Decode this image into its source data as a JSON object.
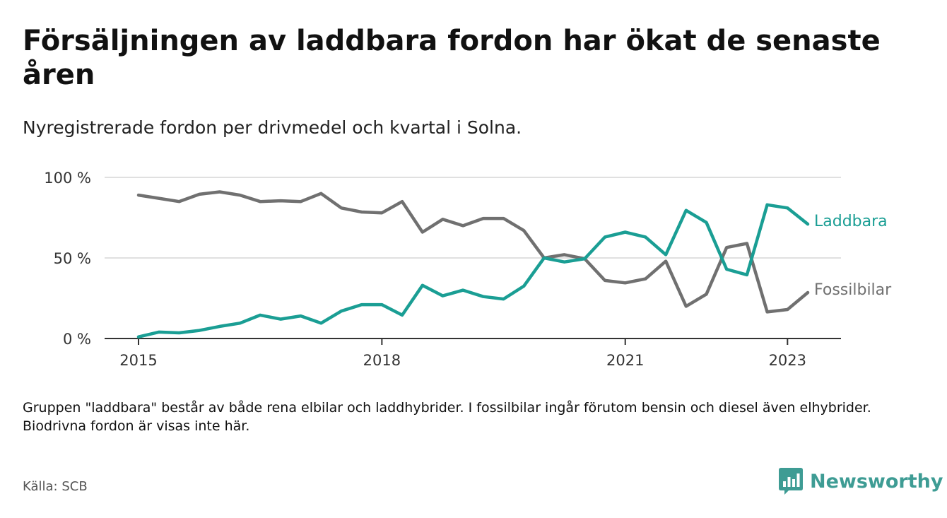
{
  "title": "Försäljningen av laddbara fordon har ökat de senaste åren",
  "subtitle": "Nyregistrerade fordon per drivmedel och kvartal i Solna.",
  "note": "Gruppen \"laddbara\" består av både rena elbilar och laddhybrider. I fossilbilar ingår förutom bensin och diesel även elhybrider. Biodrivna fordon är visas inte här.",
  "source": "Källa: SCB",
  "brand": {
    "name": "Newsworthy",
    "color": "#3e9c94"
  },
  "chart_data": {
    "type": "line",
    "title": "",
    "xlabel": "",
    "ylabel": "",
    "ylim": [
      0,
      100
    ],
    "yticks": [
      {
        "value": 0,
        "label": "0 %"
      },
      {
        "value": 50,
        "label": "50 %"
      },
      {
        "value": 100,
        "label": "100 %"
      }
    ],
    "xticks": [
      {
        "index": 0,
        "label": "2015"
      },
      {
        "index": 12,
        "label": "2018"
      },
      {
        "index": 24,
        "label": "2021"
      },
      {
        "index": 32,
        "label": "2023"
      }
    ],
    "grid": true,
    "x": [
      "2015 K1",
      "2015 K2",
      "2015 K3",
      "2015 K4",
      "2016 K1",
      "2016 K2",
      "2016 K3",
      "2016 K4",
      "2017 K1",
      "2017 K2",
      "2017 K3",
      "2017 K4",
      "2018 K1",
      "2018 K2",
      "2018 K3",
      "2018 K4",
      "2019 K1",
      "2019 K2",
      "2019 K3",
      "2019 K4",
      "2020 K1",
      "2020 K2",
      "2020 K3",
      "2020 K4",
      "2021 K1",
      "2021 K2",
      "2021 K3",
      "2021 K4",
      "2022 K1",
      "2022 K2",
      "2022 K3",
      "2022 K4",
      "2023 K1",
      "2023 K2"
    ],
    "series": [
      {
        "name": "Laddbara",
        "color": "#1a9e94",
        "values": [
          1,
          4,
          3.5,
          5,
          7.5,
          9.5,
          14.5,
          12,
          14,
          9.5,
          17,
          21,
          21,
          14.5,
          33,
          26.5,
          30,
          26,
          24.5,
          32.5,
          50,
          47.5,
          49.5,
          63,
          66,
          63,
          52,
          79.5,
          72,
          43,
          39.5,
          83,
          81,
          71
        ]
      },
      {
        "name": "Fossilbilar",
        "color": "#707070",
        "values": [
          89,
          87,
          85,
          89.5,
          91,
          89,
          85,
          85.5,
          85,
          90,
          81,
          78.5,
          78,
          85,
          66,
          74,
          70,
          74.5,
          74.5,
          67,
          50,
          52,
          49.5,
          36,
          34.5,
          37,
          48,
          20,
          27.5,
          56.5,
          59,
          16.5,
          18,
          28.5
        ]
      }
    ]
  }
}
